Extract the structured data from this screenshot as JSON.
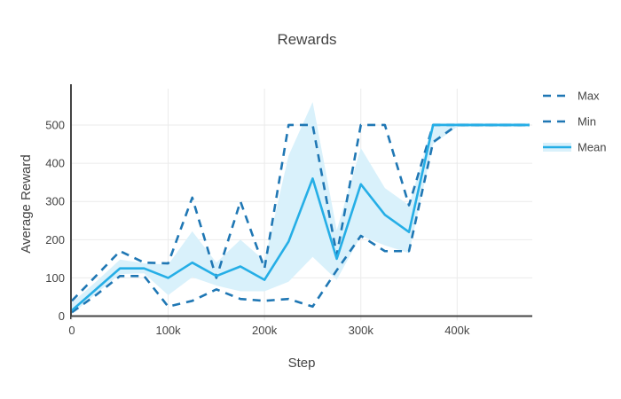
{
  "chart_data": {
    "type": "line",
    "title": "Rewards",
    "xlabel": "Step",
    "ylabel": "Average Reward",
    "grid": true,
    "legend_position": "right",
    "xlim": [
      0,
      478000
    ],
    "ylim": [
      -8,
      595
    ],
    "xticks": {
      "values": [
        0,
        100000,
        200000,
        300000,
        400000
      ],
      "labels": [
        "0",
        "100k",
        "200k",
        "300k",
        "400k"
      ]
    },
    "yticks": {
      "values": [
        0,
        100,
        200,
        300,
        400,
        500
      ],
      "labels": [
        "0",
        "100",
        "200",
        "300",
        "400",
        "500"
      ]
    },
    "x": [
      0,
      25000,
      50000,
      75000,
      100000,
      125000,
      150000,
      175000,
      200000,
      225000,
      250000,
      275000,
      300000,
      325000,
      350000,
      375000,
      400000,
      425000,
      450000,
      475000
    ],
    "series": [
      {
        "name": "Max",
        "style": "dashed",
        "color": "#1f77b4",
        "values": [
          40,
          105,
          170,
          140,
          138,
          310,
          100,
          300,
          125,
          500,
          500,
          160,
          500,
          500,
          290,
          500,
          500,
          500,
          500,
          500
        ]
      },
      {
        "name": "Min",
        "style": "dashed",
        "color": "#1f77b4",
        "values": [
          10,
          55,
          105,
          105,
          25,
          40,
          70,
          45,
          40,
          45,
          25,
          120,
          210,
          170,
          170,
          455,
          500,
          500,
          500,
          500
        ]
      },
      {
        "name": "Mean",
        "style": "solid",
        "color": "#25aee6",
        "values": [
          15,
          70,
          125,
          125,
          100,
          140,
          105,
          130,
          95,
          195,
          360,
          150,
          345,
          265,
          220,
          500,
          500,
          500,
          500,
          500
        ],
        "band": {
          "fill": "#d9f1fb",
          "upper": [
            35,
            90,
            148,
            138,
            135,
            222,
            140,
            200,
            145,
            420,
            560,
            225,
            440,
            335,
            290,
            505,
            505,
            505,
            505,
            505
          ],
          "lower": [
            5,
            58,
            110,
            112,
            55,
            102,
            80,
            65,
            65,
            90,
            155,
            95,
            210,
            185,
            165,
            450,
            495,
            495,
            495,
            495
          ]
        }
      }
    ],
    "colors": {
      "axis": "#444444",
      "grid": "#ebebeb",
      "text": "#444444",
      "background": "#ffffff"
    }
  }
}
